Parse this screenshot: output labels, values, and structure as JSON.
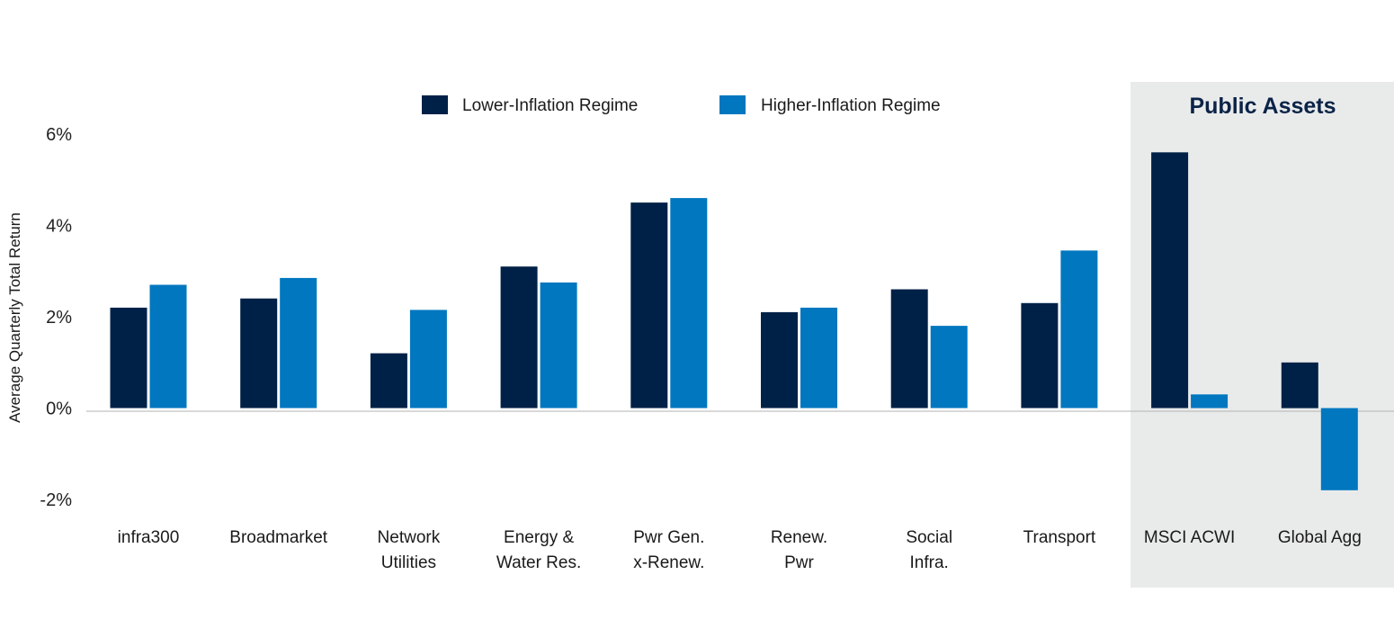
{
  "colors": {
    "lower": "#002147",
    "higher": "#0077bf",
    "panel": "#e9ebeb",
    "axis": "#b3b3b3"
  },
  "public_panel": {
    "title": "Public Assets"
  },
  "chart_data": {
    "type": "bar",
    "ylabel": "Average Quarterly Total Return",
    "ylim": [
      -2,
      6
    ],
    "yticks": [
      6,
      4,
      2,
      0,
      -2
    ],
    "ytick_labels": [
      "6%",
      "4%",
      "2%",
      "0%",
      "-2%"
    ],
    "legend_position": "top",
    "categories": [
      [
        "infra300"
      ],
      [
        "Broadmarket"
      ],
      [
        "Network",
        "Utilities"
      ],
      [
        "Energy &",
        "Water Res."
      ],
      [
        "Pwr Gen.",
        "x-Renew."
      ],
      [
        "Renew.",
        "Pwr"
      ],
      [
        "Social",
        "Infra."
      ],
      [
        "Transport"
      ],
      [
        "MSCI ACWI"
      ],
      [
        "Global Agg"
      ]
    ],
    "series": [
      {
        "name": "Lower-Inflation Regime",
        "values": [
          2.2,
          2.4,
          1.2,
          3.1,
          4.5,
          2.1,
          2.6,
          2.3,
          5.6,
          1.0
        ]
      },
      {
        "name": "Higher-Inflation Regime",
        "values": [
          2.7,
          2.85,
          2.15,
          2.75,
          4.6,
          2.2,
          1.8,
          3.45,
          0.3,
          -1.8
        ]
      }
    ]
  }
}
